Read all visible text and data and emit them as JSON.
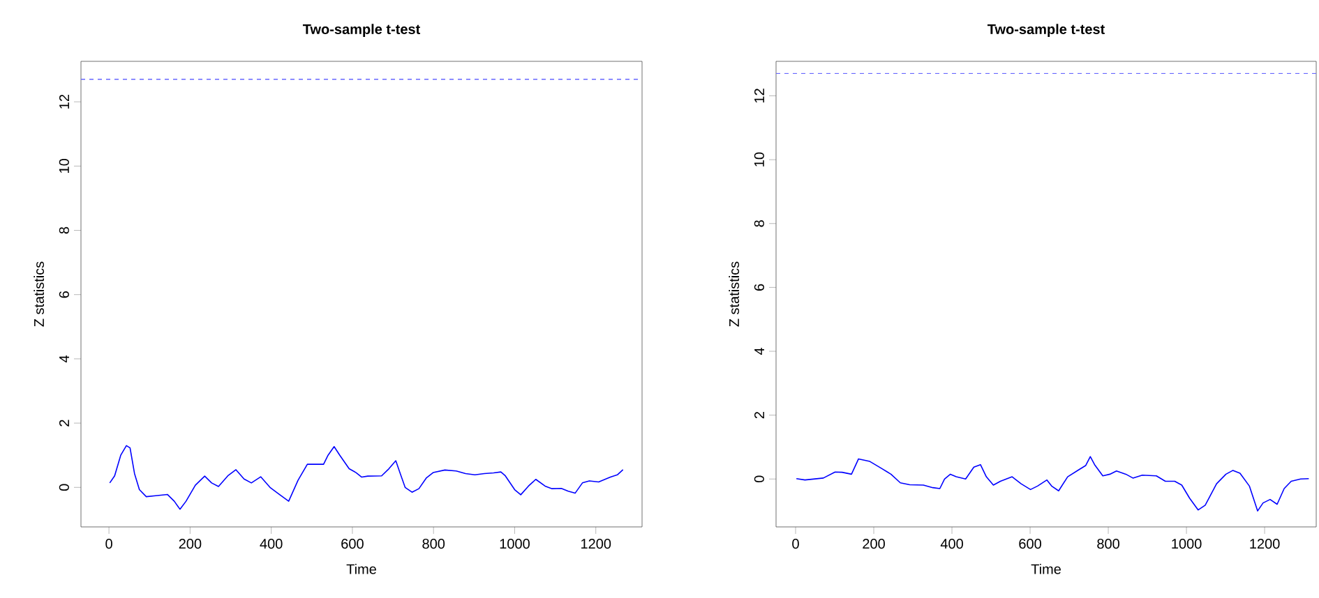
{
  "chart_data": [
    {
      "type": "line",
      "title": "Two-sample t-test",
      "xlabel": "Time",
      "ylabel": "Z statistics",
      "xlim": [
        -69,
        1314
      ],
      "ylim": [
        -1.23,
        13.26
      ],
      "xticks": [
        0,
        200,
        400,
        600,
        800,
        1000,
        1200
      ],
      "yticks": [
        0,
        2,
        4,
        6,
        8,
        10,
        12
      ],
      "line_style": "solid",
      "marker": "none",
      "x": [
        2,
        14,
        29,
        43,
        52,
        63,
        75,
        92,
        115,
        144,
        161,
        175,
        190,
        213,
        236,
        253,
        270,
        293,
        313,
        333,
        351,
        374,
        397,
        420,
        443,
        466,
        489,
        506,
        529,
        540,
        555,
        569,
        592,
        609,
        623,
        638,
        672,
        690,
        707,
        718,
        730,
        747,
        764,
        782,
        799,
        828,
        856,
        879,
        902,
        925,
        948,
        966,
        977,
        1000,
        1015,
        1034,
        1052,
        1075,
        1092,
        1115,
        1132,
        1149,
        1167,
        1184,
        1207,
        1236,
        1253,
        1267
      ],
      "series": [
        {
          "color": "#0000ff",
          "values": [
            0.14,
            0.36,
            1.0,
            1.3,
            1.23,
            0.43,
            -0.07,
            -0.29,
            -0.26,
            -0.22,
            -0.43,
            -0.68,
            -0.43,
            0.07,
            0.35,
            0.14,
            0.03,
            0.36,
            0.55,
            0.26,
            0.14,
            0.33,
            0,
            -0.22,
            -0.43,
            0.22,
            0.72,
            0.72,
            0.72,
            1.0,
            1.27,
            1.0,
            0.58,
            0.46,
            0.32,
            0.35,
            0.36,
            0.58,
            0.83,
            0.43,
            0,
            -0.15,
            -0.04,
            0.29,
            0.46,
            0.54,
            0.51,
            0.43,
            0.39,
            0.43,
            0.45,
            0.48,
            0.36,
            -0.07,
            -0.23,
            0.04,
            0.25,
            0.04,
            -0.04,
            -0.03,
            -0.12,
            -0.18,
            0.14,
            0.2,
            0.17,
            0.32,
            0.39,
            0.55
          ]
        }
      ],
      "ref_lines": [
        {
          "axis": "y",
          "value": 12.7,
          "color": "#6666ff",
          "line_style": "dashed"
        }
      ]
    },
    {
      "type": "line",
      "title": "Two-sample t-test",
      "xlabel": "Time",
      "ylabel": "Z statistics",
      "xlim": [
        -50,
        1332
      ],
      "ylim": [
        -1.5,
        13.08
      ],
      "xticks": [
        0,
        200,
        400,
        600,
        800,
        1000,
        1200
      ],
      "yticks": [
        0,
        2,
        4,
        6,
        8,
        10,
        12
      ],
      "line_style": "solid",
      "marker": "none",
      "x": [
        2,
        24,
        71,
        101,
        119,
        143,
        161,
        190,
        220,
        244,
        268,
        292,
        327,
        351,
        369,
        381,
        396,
        411,
        435,
        456,
        473,
        488,
        506,
        524,
        554,
        577,
        601,
        619,
        643,
        655,
        673,
        696,
        726,
        742,
        754,
        765,
        786,
        804,
        821,
        845,
        863,
        887,
        923,
        946,
        970,
        988,
        1008,
        1030,
        1048,
        1077,
        1101,
        1119,
        1137,
        1161,
        1182,
        1196,
        1214,
        1232,
        1250,
        1268,
        1292,
        1313
      ],
      "series": [
        {
          "color": "#0000ff",
          "values": [
            0.01,
            -0.03,
            0.03,
            0.22,
            0.21,
            0.15,
            0.63,
            0.55,
            0.33,
            0.15,
            -0.12,
            -0.18,
            -0.19,
            -0.27,
            -0.3,
            0,
            0.15,
            0.07,
            0,
            0.37,
            0.45,
            0.07,
            -0.19,
            -0.07,
            0.07,
            -0.15,
            -0.33,
            -0.22,
            -0.03,
            -0.22,
            -0.37,
            0.07,
            0.3,
            0.42,
            0.7,
            0.45,
            0.1,
            0.15,
            0.25,
            0.15,
            0.03,
            0.12,
            0.1,
            -0.07,
            -0.07,
            -0.19,
            -0.6,
            -0.97,
            -0.82,
            -0.15,
            0.15,
            0.27,
            0.18,
            -0.22,
            -1.0,
            -0.75,
            -0.64,
            -0.79,
            -0.3,
            -0.07,
            0,
            0.01
          ]
        }
      ],
      "ref_lines": [
        {
          "axis": "y",
          "value": 12.7,
          "color": "#6666ff",
          "line_style": "dashed"
        }
      ]
    }
  ]
}
